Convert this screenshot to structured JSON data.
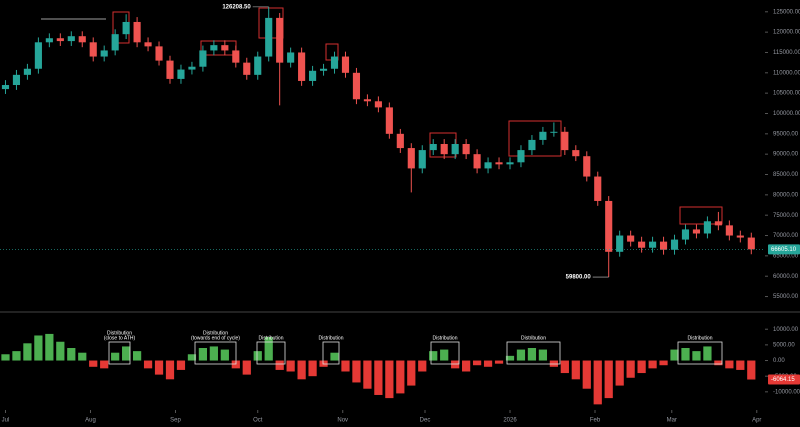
{
  "chart_data": [
    {
      "type": "candlestick",
      "x": [
        0,
        4,
        8,
        12,
        16,
        20,
        24,
        28,
        32,
        36,
        40,
        44,
        48,
        52,
        56,
        60,
        64,
        68,
        72,
        76,
        80,
        84,
        88,
        92,
        96,
        100,
        104,
        108,
        112,
        116,
        120,
        124,
        128,
        132,
        136,
        140,
        144,
        148,
        152,
        156,
        160,
        164,
        168,
        172,
        176,
        180,
        184,
        188,
        192,
        196,
        200,
        204,
        208,
        212,
        216,
        220,
        224,
        228,
        232,
        236,
        240,
        244,
        248,
        252,
        256,
        260,
        264,
        268,
        272
      ],
      "open": [
        106000,
        107000,
        109500,
        111000,
        117500,
        118500,
        117800,
        119000,
        117500,
        114000,
        115500,
        119500,
        122500,
        117500,
        116500,
        113000,
        108500,
        110800,
        111500,
        115500,
        116800,
        115500,
        112500,
        109500,
        114000,
        123500,
        112500,
        115000,
        108000,
        110500,
        111000,
        114000,
        110000,
        103500,
        103000,
        101500,
        95000,
        91500,
        86500,
        91000,
        92500,
        90000,
        92500,
        90000,
        86500,
        88000,
        87500,
        88000,
        91000,
        93500,
        95500,
        95500,
        91000,
        89500,
        84500,
        78500,
        66000,
        70000,
        68500,
        67000,
        68500,
        66500,
        69000,
        71500,
        70500,
        73500,
        72500,
        70000,
        69500
      ],
      "high": [
        108200,
        110700,
        112200,
        118700,
        119700,
        119700,
        120200,
        120200,
        118700,
        116700,
        120700,
        124400,
        123700,
        118700,
        117700,
        114200,
        112000,
        112700,
        116700,
        118000,
        118000,
        116700,
        113700,
        115200,
        126208.5,
        124700,
        116200,
        116200,
        111700,
        112200,
        115200,
        115200,
        111200,
        104700,
        104200,
        102700,
        96200,
        92700,
        92200,
        93700,
        93700,
        93700,
        93700,
        91200,
        89200,
        89200,
        89200,
        92200,
        94700,
        96700,
        97800,
        96700,
        92200,
        90700,
        85700,
        79700,
        71200,
        71200,
        69700,
        69700,
        69700,
        70200,
        72700,
        72700,
        74700,
        75800,
        73700,
        71200,
        70700
      ],
      "low": [
        104800,
        105800,
        108300,
        109800,
        116300,
        116600,
        116600,
        116300,
        112800,
        112800,
        114300,
        118300,
        116300,
        115300,
        111800,
        107300,
        107300,
        109600,
        110300,
        114300,
        114300,
        111300,
        108300,
        108300,
        112800,
        102000,
        111300,
        106800,
        106800,
        109300,
        109800,
        108800,
        102300,
        101800,
        100300,
        93800,
        90300,
        80600,
        85300,
        89800,
        88800,
        88800,
        88800,
        85300,
        85300,
        86300,
        86300,
        86800,
        89800,
        92300,
        94300,
        89800,
        88300,
        83300,
        77300,
        59800,
        64800,
        67300,
        65800,
        65800,
        65300,
        65300,
        67800,
        69300,
        69300,
        71300,
        68800,
        68300,
        65400
      ],
      "close": [
        107000,
        109500,
        111000,
        117500,
        118500,
        117800,
        119000,
        117500,
        114000,
        115500,
        119500,
        122500,
        117500,
        116500,
        113000,
        108500,
        110800,
        111500,
        115500,
        116800,
        115500,
        112500,
        109500,
        114000,
        123500,
        112500,
        115000,
        108000,
        110500,
        111000,
        114000,
        110000,
        103500,
        103000,
        101500,
        95000,
        91500,
        86500,
        91000,
        92500,
        90000,
        92500,
        90000,
        86500,
        88000,
        87500,
        88000,
        91000,
        93500,
        95500,
        95500,
        91000,
        89500,
        84500,
        78500,
        66000,
        70000,
        68500,
        67000,
        68500,
        66500,
        69000,
        71500,
        70500,
        73500,
        72500,
        70000,
        69500,
        66605.1
      ],
      "up_color": "#26a69a",
      "down_color": "#ef5350",
      "xlim": [
        -2,
        277
      ],
      "xticks": [
        {
          "value": 0,
          "label": "Jul"
        },
        {
          "value": 31,
          "label": "Aug"
        },
        {
          "value": 62,
          "label": "Sep"
        },
        {
          "value": 92,
          "label": "Oct"
        },
        {
          "value": 123,
          "label": "Nov"
        },
        {
          "value": 153,
          "label": "Dec"
        },
        {
          "value": 184,
          "label": "2026"
        },
        {
          "value": 215,
          "label": "Feb"
        },
        {
          "value": 243,
          "label": "Mar"
        },
        {
          "value": 274,
          "label": "Apr"
        }
      ],
      "ylim": [
        51200,
        127900
      ],
      "yticks": [
        {
          "value": 125000,
          "label": "125000.00"
        },
        {
          "value": 120000,
          "label": "120000.00"
        },
        {
          "value": 115000,
          "label": "115000.00"
        },
        {
          "value": 110000,
          "label": "110000.00"
        },
        {
          "value": 105000,
          "label": "105000.00"
        },
        {
          "value": 100000,
          "label": "100000.00"
        },
        {
          "value": 95000,
          "label": "95000.00"
        },
        {
          "value": 90000,
          "label": "90000.00"
        },
        {
          "value": 85000,
          "label": "85000.00"
        },
        {
          "value": 80000,
          "label": "80000.00"
        },
        {
          "value": 75000,
          "label": "75000.00"
        },
        {
          "value": 70000,
          "label": "70000.00"
        },
        {
          "value": 65000,
          "label": "65000.00"
        },
        {
          "value": 60000,
          "label": "60000.00"
        },
        {
          "value": 55000,
          "label": "55000.00"
        }
      ],
      "markers": [
        {
          "x": 96,
          "value": 126208.5,
          "label": "126208.50"
        },
        {
          "x": 220,
          "value": 59800,
          "label": "59800.00"
        }
      ],
      "last_price": {
        "value": 66605.1,
        "label": "66605.10"
      }
    },
    {
      "type": "bar",
      "x": [
        0,
        4,
        8,
        12,
        16,
        20,
        24,
        28,
        32,
        36,
        40,
        44,
        48,
        52,
        56,
        60,
        64,
        68,
        72,
        76,
        80,
        84,
        88,
        92,
        96,
        100,
        104,
        108,
        112,
        116,
        120,
        124,
        128,
        132,
        136,
        140,
        144,
        148,
        152,
        156,
        160,
        164,
        168,
        172,
        176,
        180,
        184,
        188,
        192,
        196,
        200,
        204,
        208,
        212,
        216,
        220,
        224,
        228,
        232,
        236,
        240,
        244,
        248,
        252,
        256,
        260,
        264,
        268,
        272
      ],
      "values": [
        2000,
        3000,
        5500,
        8000,
        8500,
        6000,
        4000,
        2500,
        -2000,
        -2500,
        2500,
        4500,
        3000,
        -2500,
        -4500,
        -6000,
        -3000,
        2000,
        4000,
        4500,
        3500,
        -2500,
        -4500,
        3000,
        7500,
        -3000,
        -3500,
        -6000,
        -5000,
        -2000,
        2500,
        -3500,
        -7000,
        -9000,
        -11000,
        -12000,
        -10500,
        -8000,
        -3500,
        3000,
        3500,
        -2500,
        -3500,
        -1500,
        -2000,
        -1000,
        1500,
        3500,
        4000,
        3500,
        -2000,
        -4000,
        -6000,
        -9000,
        -14000,
        -12000,
        -8000,
        -5500,
        -4000,
        -2500,
        -1500,
        3500,
        4000,
        3000,
        4500,
        -1500,
        -2500,
        -3000,
        -6064.15
      ],
      "up_color": "#4caf50",
      "down_color": "#e53935",
      "ylim": [
        -15800,
        15500
      ],
      "yticks": [
        {
          "value": 10000,
          "label": "10000.00"
        },
        {
          "value": 5000,
          "label": "5000.00"
        },
        {
          "value": 0,
          "label": "0.00"
        },
        {
          "value": -5000,
          "label": "-5000.00"
        },
        {
          "value": -10000,
          "label": "-10000.00"
        }
      ],
      "last_value": {
        "value": -6064.15,
        "label": "-6064.15"
      },
      "annotations": [
        {
          "lines": [
            "Distribution",
            "(close to ATH)"
          ]
        },
        {
          "lines": [
            "Distribution",
            "(towards end of cycle)"
          ]
        },
        {
          "lines": [
            "Distribution"
          ]
        },
        {
          "lines": [
            "Distribution"
          ]
        },
        {
          "lines": [
            "Distribution"
          ]
        },
        {
          "lines": [
            "Distribution"
          ]
        },
        {
          "lines": [
            "Distribution"
          ]
        }
      ]
    }
  ]
}
